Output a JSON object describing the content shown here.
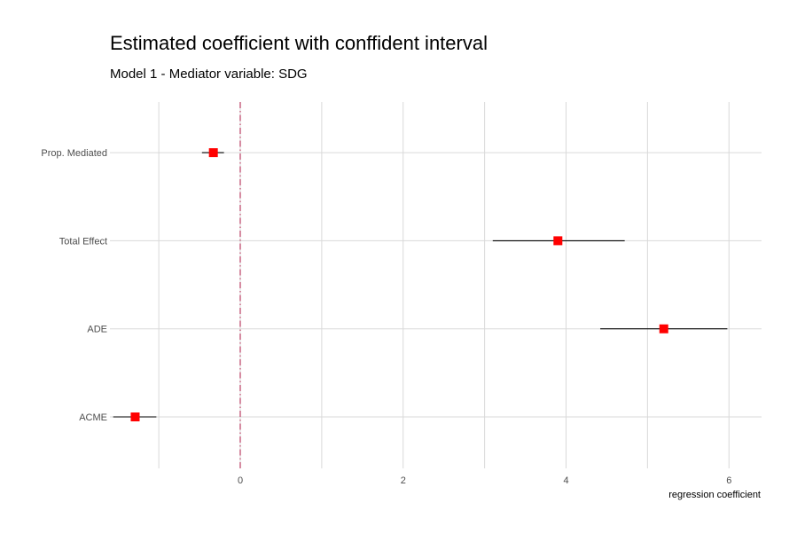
{
  "chart_data": {
    "type": "scatter",
    "title": "Estimated coefficient with conffident interval",
    "subtitle": "Model 1 - Mediator variable: SDG",
    "xlabel": "regression coefficient",
    "ylabel": "",
    "categories": [
      "ACME",
      "ADE",
      "Total Effect",
      "Prop. Mediated"
    ],
    "estimates": [
      -1.29,
      5.2,
      3.9,
      -0.33
    ],
    "lower": [
      -1.56,
      4.42,
      3.1,
      -0.47
    ],
    "upper": [
      -1.03,
      5.98,
      4.72,
      -0.2
    ],
    "xlim": [
      -1.6,
      6.4
    ],
    "x_ticks": [
      0,
      2,
      4,
      6
    ],
    "x_minor_ticks": [
      -1,
      1,
      3,
      5
    ],
    "reference_line": 0,
    "grid": true,
    "colors": {
      "point": "#ff0000",
      "interval": "#000000",
      "reference": "#c45a7a",
      "grid": "#d9d9d9"
    }
  }
}
